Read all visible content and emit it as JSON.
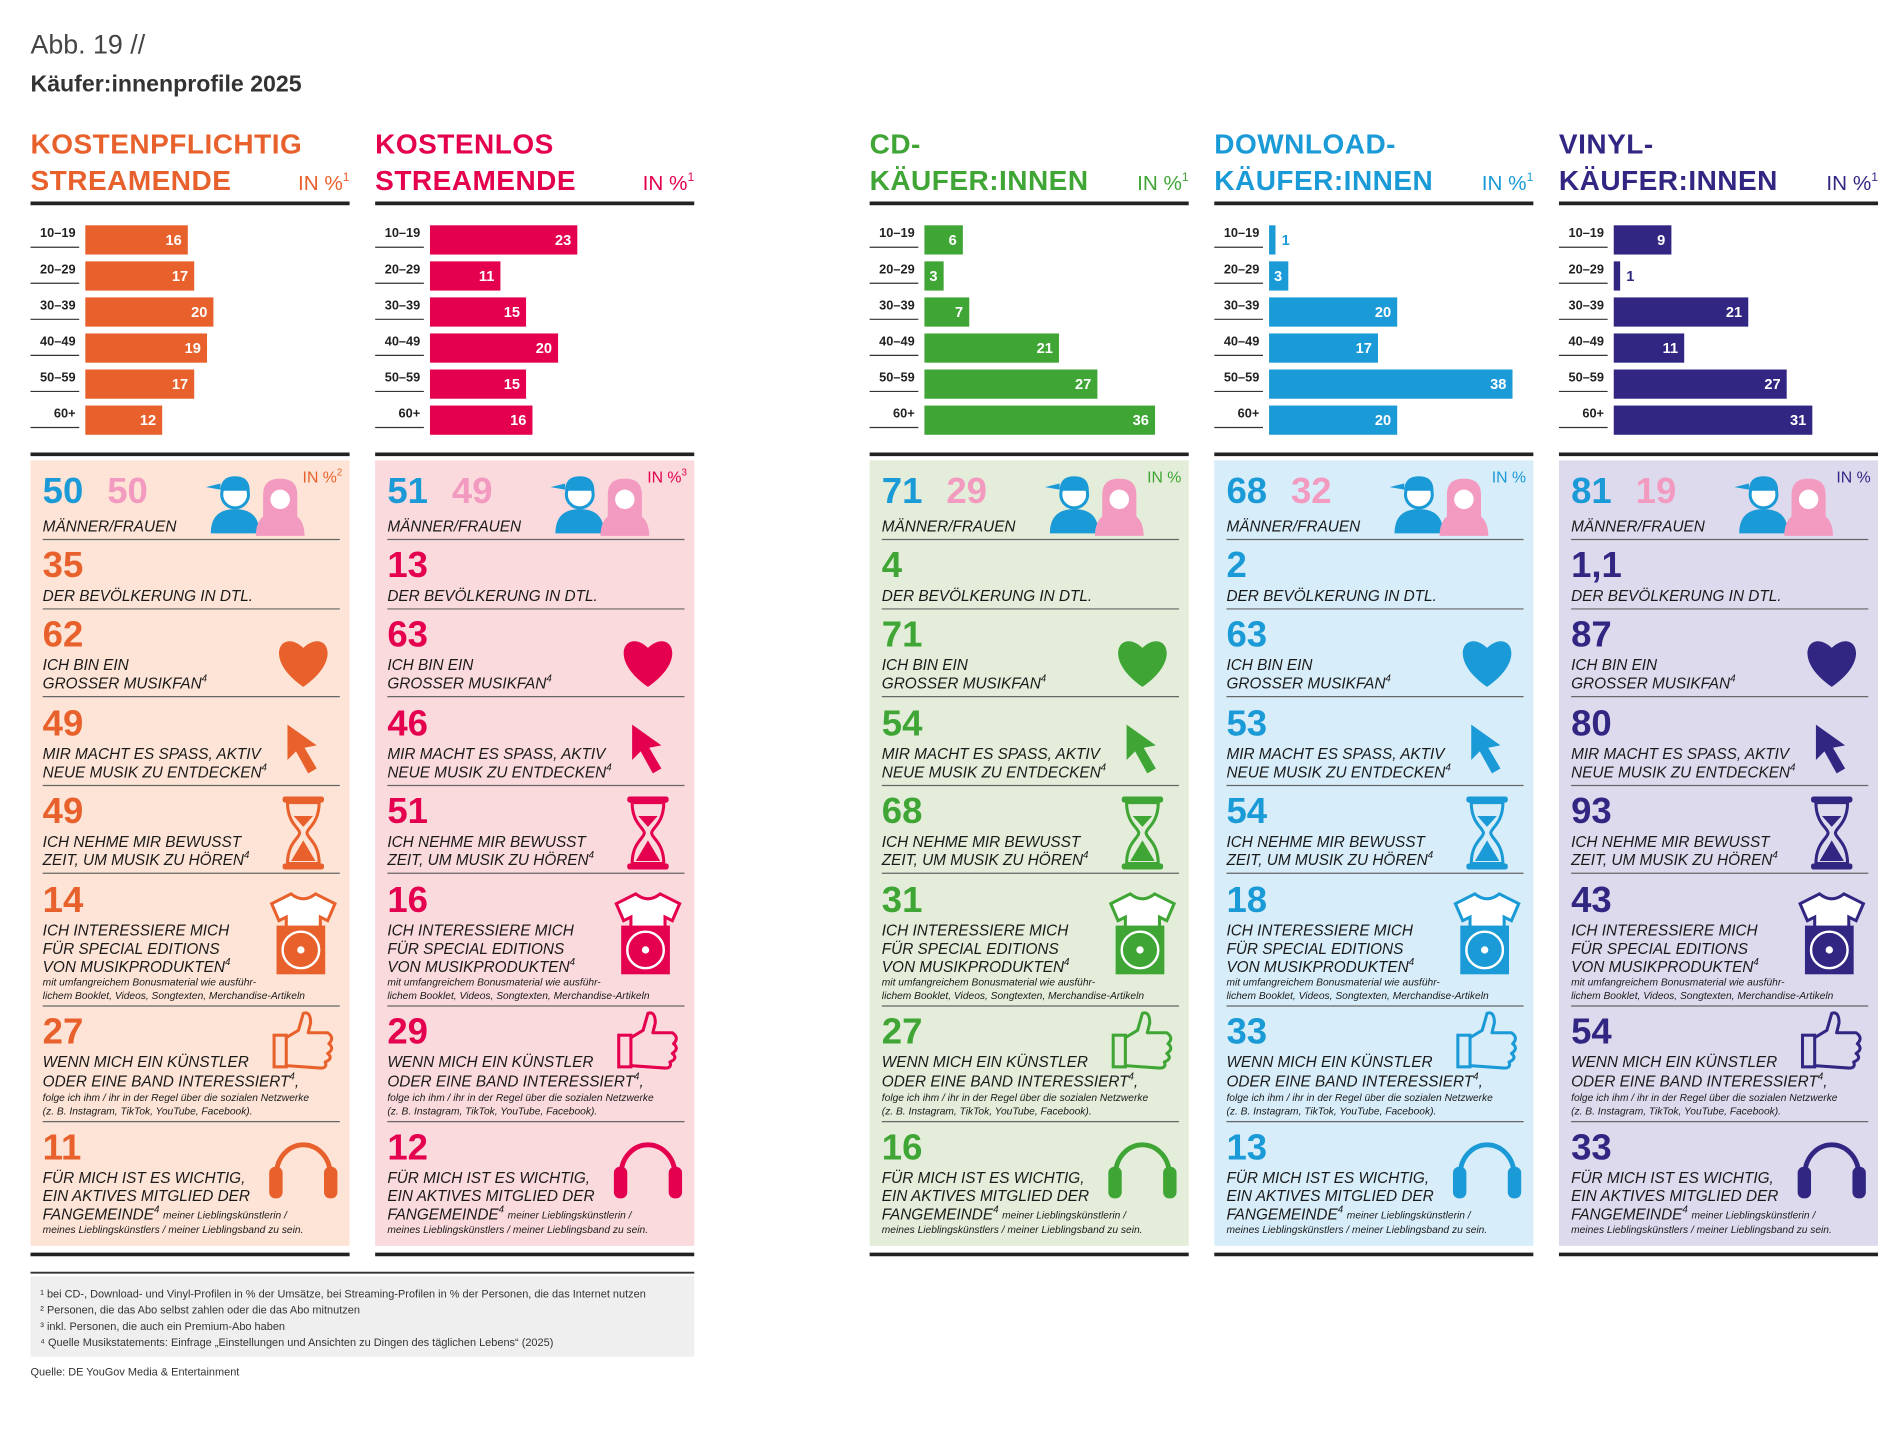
{
  "header": {
    "label": "Abb. 19 //",
    "title": "Käufer:innenprofile 2025"
  },
  "chart_data": [
    {
      "type": "bar",
      "title": [
        "KOSTENPFLICHTIG",
        "STREAMENDE"
      ],
      "unit": "IN %",
      "unit_note": "1",
      "categories": [
        "10–19",
        "20–29",
        "30–39",
        "40–49",
        "50–59",
        "60+"
      ],
      "values": [
        16,
        17,
        20,
        19,
        17,
        12
      ],
      "color": "#e8612c",
      "panel_color": "#fde4d6",
      "gender": [
        50,
        50
      ],
      "gender_unit": "IN %",
      "gender_unit_note": "2",
      "stats": [
        35,
        62,
        49,
        49,
        14,
        27,
        11
      ]
    },
    {
      "type": "bar",
      "title": [
        "KOSTENLOS",
        "STREAMENDE"
      ],
      "unit": "IN %",
      "unit_note": "1",
      "categories": [
        "10–19",
        "20–29",
        "30–39",
        "40–49",
        "50–59",
        "60+"
      ],
      "values": [
        23,
        11,
        15,
        20,
        15,
        16
      ],
      "color": "#e4004f",
      "panel_color": "#fadadd",
      "gender": [
        51,
        49
      ],
      "gender_unit": "IN %",
      "gender_unit_note": "3",
      "stats": [
        13,
        63,
        46,
        51,
        16,
        29,
        12
      ]
    },
    {
      "type": "bar",
      "title": [
        "CD-",
        "KÄUFER:INNEN"
      ],
      "unit": "IN %",
      "unit_note": "1",
      "categories": [
        "10–19",
        "20–29",
        "30–39",
        "40–49",
        "50–59",
        "60+"
      ],
      "values": [
        6,
        3,
        7,
        21,
        27,
        36
      ],
      "color": "#3fa535",
      "panel_color": "#e3edd9",
      "gender": [
        71,
        29
      ],
      "gender_unit": "IN %",
      "stats": [
        4,
        71,
        54,
        68,
        31,
        27,
        16
      ]
    },
    {
      "type": "bar",
      "title": [
        "DOWNLOAD-",
        "KÄUFER:INNEN"
      ],
      "unit": "IN %",
      "unit_note": "1",
      "categories": [
        "10–19",
        "20–29",
        "30–39",
        "40–49",
        "50–59",
        "60+"
      ],
      "values": [
        1,
        3,
        20,
        17,
        38,
        20
      ],
      "color": "#1a9ad6",
      "panel_color": "#d7edf9",
      "gender": [
        68,
        32
      ],
      "gender_unit": "IN %",
      "stats": [
        2,
        63,
        53,
        54,
        18,
        33,
        13
      ]
    },
    {
      "type": "bar",
      "title": [
        "VINYL-",
        "KÄUFER:INNEN"
      ],
      "unit": "IN %",
      "unit_note": "1",
      "categories": [
        "10–19",
        "20–29",
        "30–39",
        "40–49",
        "50–59",
        "60+"
      ],
      "values": [
        9,
        1,
        21,
        11,
        27,
        31
      ],
      "color": "#312783",
      "panel_color": "#dedaee",
      "gender": [
        81,
        19
      ],
      "gender_unit": "IN %",
      "stats": [
        {
          "value": 1.1,
          "label": "1,1"
        },
        87,
        80,
        93,
        43,
        54,
        33
      ]
    }
  ],
  "gender_colors": [
    "#1a9ad6",
    "#f39ac0"
  ],
  "statements": [
    {
      "lines": [
        "MÄNNER/FRAUEN"
      ]
    },
    {
      "lines": [
        "DER BEVÖLKERUNG IN DTL."
      ]
    },
    {
      "lines": [
        "ICH BIN EIN",
        "GROSSER MUSIKFAN"
      ],
      "sup": "4"
    },
    {
      "lines": [
        "MIR MACHT ES SPASS, AKTIV",
        "NEUE MUSIK ZU ENTDECKEN"
      ],
      "sup": "4"
    },
    {
      "lines": [
        "ICH NEHME MIR BEWUSST",
        "ZEIT, UM MUSIK ZU HÖREN"
      ],
      "sup": "4"
    },
    {
      "lines": [
        "ICH INTERESSIERE MICH",
        "FÜR SPECIAL EDITIONS",
        "VON MUSIKPRODUKTEN"
      ],
      "sup": "4",
      "note": [
        "mit umfangreichem Bonusmaterial wie ausführ-",
        "lichem Booklet, Videos, Songtexten, Merchandise-Artikeln"
      ]
    },
    {
      "lines": [
        "WENN MICH EIN KÜNSTLER",
        "ODER EINE BAND INTERESSIERT"
      ],
      "sup": "4",
      "tail": ",",
      "note": [
        "folge ich ihm / ihr in der Regel über die sozialen Netzwerke",
        "(z. B. Instagram, TikTok, YouTube, Facebook)."
      ]
    },
    {
      "lines": [
        "FÜR MICH IST ES WICHTIG,",
        "EIN AKTIVES MITGLIED DER",
        "FANGEMEINDE"
      ],
      "sup": "4",
      "note": [
        "meiner Lieblingskünstlerin /",
        "meines Lieblingskünstlers / meiner Lieblingsband zu sein."
      ]
    }
  ],
  "footnotes": [
    "¹ bei CD-, Download- und Vinyl-Profilen in % der Umsätze, bei Streaming-Profilen in % der Personen, die das Internet nutzen",
    "² Personen, die das Abo selbst zahlen oder die das Abo mitnutzen",
    "³ inkl. Personen, die auch ein Premium-Abo haben",
    "⁴ Quelle Musikstatements: Einfrage „Einstellungen und Ansichten zu Dingen des täglichen Lebens“ (2025)"
  ],
  "source": "Quelle: DE YouGov Media & Entertainment"
}
